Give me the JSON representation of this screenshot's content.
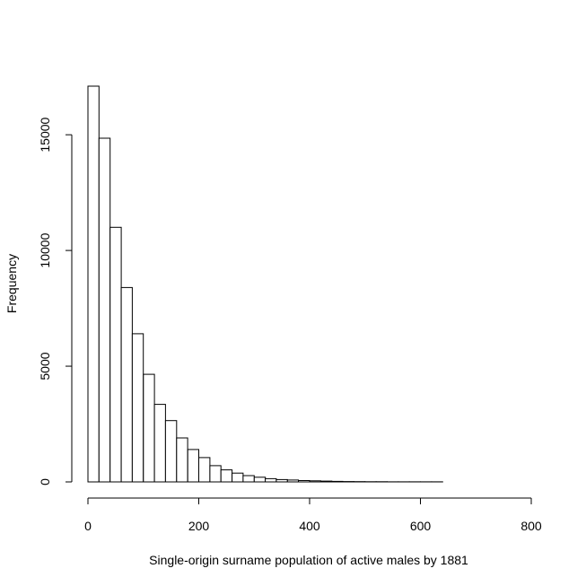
{
  "chart_data": {
    "type": "bar",
    "subtype": "histogram",
    "title": "",
    "xlabel": "Single-origin surname population of active males by 1881",
    "ylabel": "Frequency",
    "bin_width": 20,
    "bins": [
      {
        "start": 0,
        "end": 20,
        "value": 17100
      },
      {
        "start": 20,
        "end": 40,
        "value": 14850
      },
      {
        "start": 40,
        "end": 60,
        "value": 11000
      },
      {
        "start": 60,
        "end": 80,
        "value": 8400
      },
      {
        "start": 80,
        "end": 100,
        "value": 6400
      },
      {
        "start": 100,
        "end": 120,
        "value": 4650
      },
      {
        "start": 120,
        "end": 140,
        "value": 3350
      },
      {
        "start": 140,
        "end": 160,
        "value": 2650
      },
      {
        "start": 160,
        "end": 180,
        "value": 1900
      },
      {
        "start": 180,
        "end": 200,
        "value": 1400
      },
      {
        "start": 200,
        "end": 220,
        "value": 1050
      },
      {
        "start": 220,
        "end": 240,
        "value": 700
      },
      {
        "start": 240,
        "end": 260,
        "value": 520
      },
      {
        "start": 260,
        "end": 280,
        "value": 380
      },
      {
        "start": 280,
        "end": 300,
        "value": 270
      },
      {
        "start": 300,
        "end": 320,
        "value": 200
      },
      {
        "start": 320,
        "end": 340,
        "value": 140
      },
      {
        "start": 340,
        "end": 360,
        "value": 100
      },
      {
        "start": 360,
        "end": 380,
        "value": 80
      },
      {
        "start": 380,
        "end": 400,
        "value": 60
      },
      {
        "start": 400,
        "end": 420,
        "value": 45
      },
      {
        "start": 420,
        "end": 440,
        "value": 35
      },
      {
        "start": 440,
        "end": 460,
        "value": 25
      },
      {
        "start": 460,
        "end": 480,
        "value": 15
      },
      {
        "start": 480,
        "end": 500,
        "value": 12
      },
      {
        "start": 500,
        "end": 520,
        "value": 8
      },
      {
        "start": 520,
        "end": 540,
        "value": 6
      },
      {
        "start": 540,
        "end": 560,
        "value": 5
      },
      {
        "start": 560,
        "end": 580,
        "value": 4
      },
      {
        "start": 580,
        "end": 600,
        "value": 3
      },
      {
        "start": 600,
        "end": 620,
        "value": 2
      },
      {
        "start": 620,
        "end": 640,
        "value": 2
      },
      {
        "start": 640,
        "end": 660,
        "value": 1
      },
      {
        "start": 660,
        "end": 680,
        "value": 1
      },
      {
        "start": 680,
        "end": 700,
        "value": 1
      },
      {
        "start": 700,
        "end": 720,
        "value": 1
      },
      {
        "start": 720,
        "end": 740,
        "value": 1
      }
    ],
    "xlim": [
      0,
      800
    ],
    "ylim": [
      0,
      17100
    ],
    "x_ticks": [
      0,
      200,
      400,
      600,
      800
    ],
    "y_ticks": [
      0,
      5000,
      10000,
      15000
    ],
    "grid": false,
    "legend": "none"
  }
}
